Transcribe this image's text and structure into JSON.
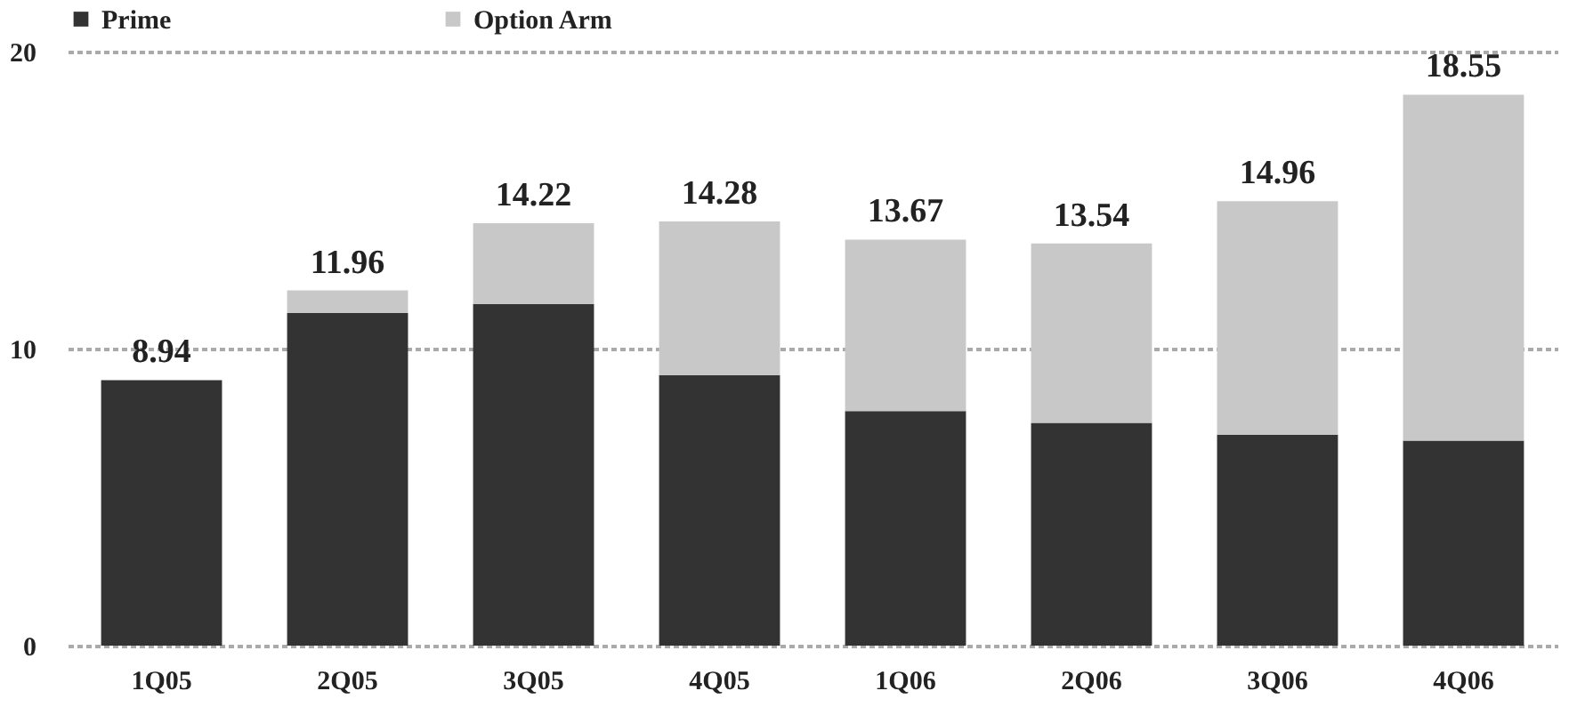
{
  "chart_data": {
    "type": "bar",
    "stacked": true,
    "categories": [
      "1Q05",
      "2Q05",
      "3Q05",
      "4Q05",
      "1Q06",
      "2Q06",
      "3Q06",
      "4Q06"
    ],
    "series": [
      {
        "name": "Prime",
        "color": "#333333",
        "values": [
          8.94,
          11.2,
          11.5,
          9.1,
          7.9,
          7.5,
          7.1,
          6.9
        ]
      },
      {
        "name": "Option Arm",
        "color": "#c8c8c8",
        "values": [
          0,
          0.76,
          2.72,
          5.18,
          5.77,
          6.04,
          7.86,
          11.65
        ]
      }
    ],
    "totals": [
      "8.94",
      "11.96",
      "14.22",
      "14.28",
      "13.67",
      "13.54",
      "14.96",
      "18.55"
    ],
    "ylim": [
      0,
      20
    ],
    "yticks": [
      0,
      10,
      20
    ],
    "grid": "y",
    "legend": "top"
  }
}
